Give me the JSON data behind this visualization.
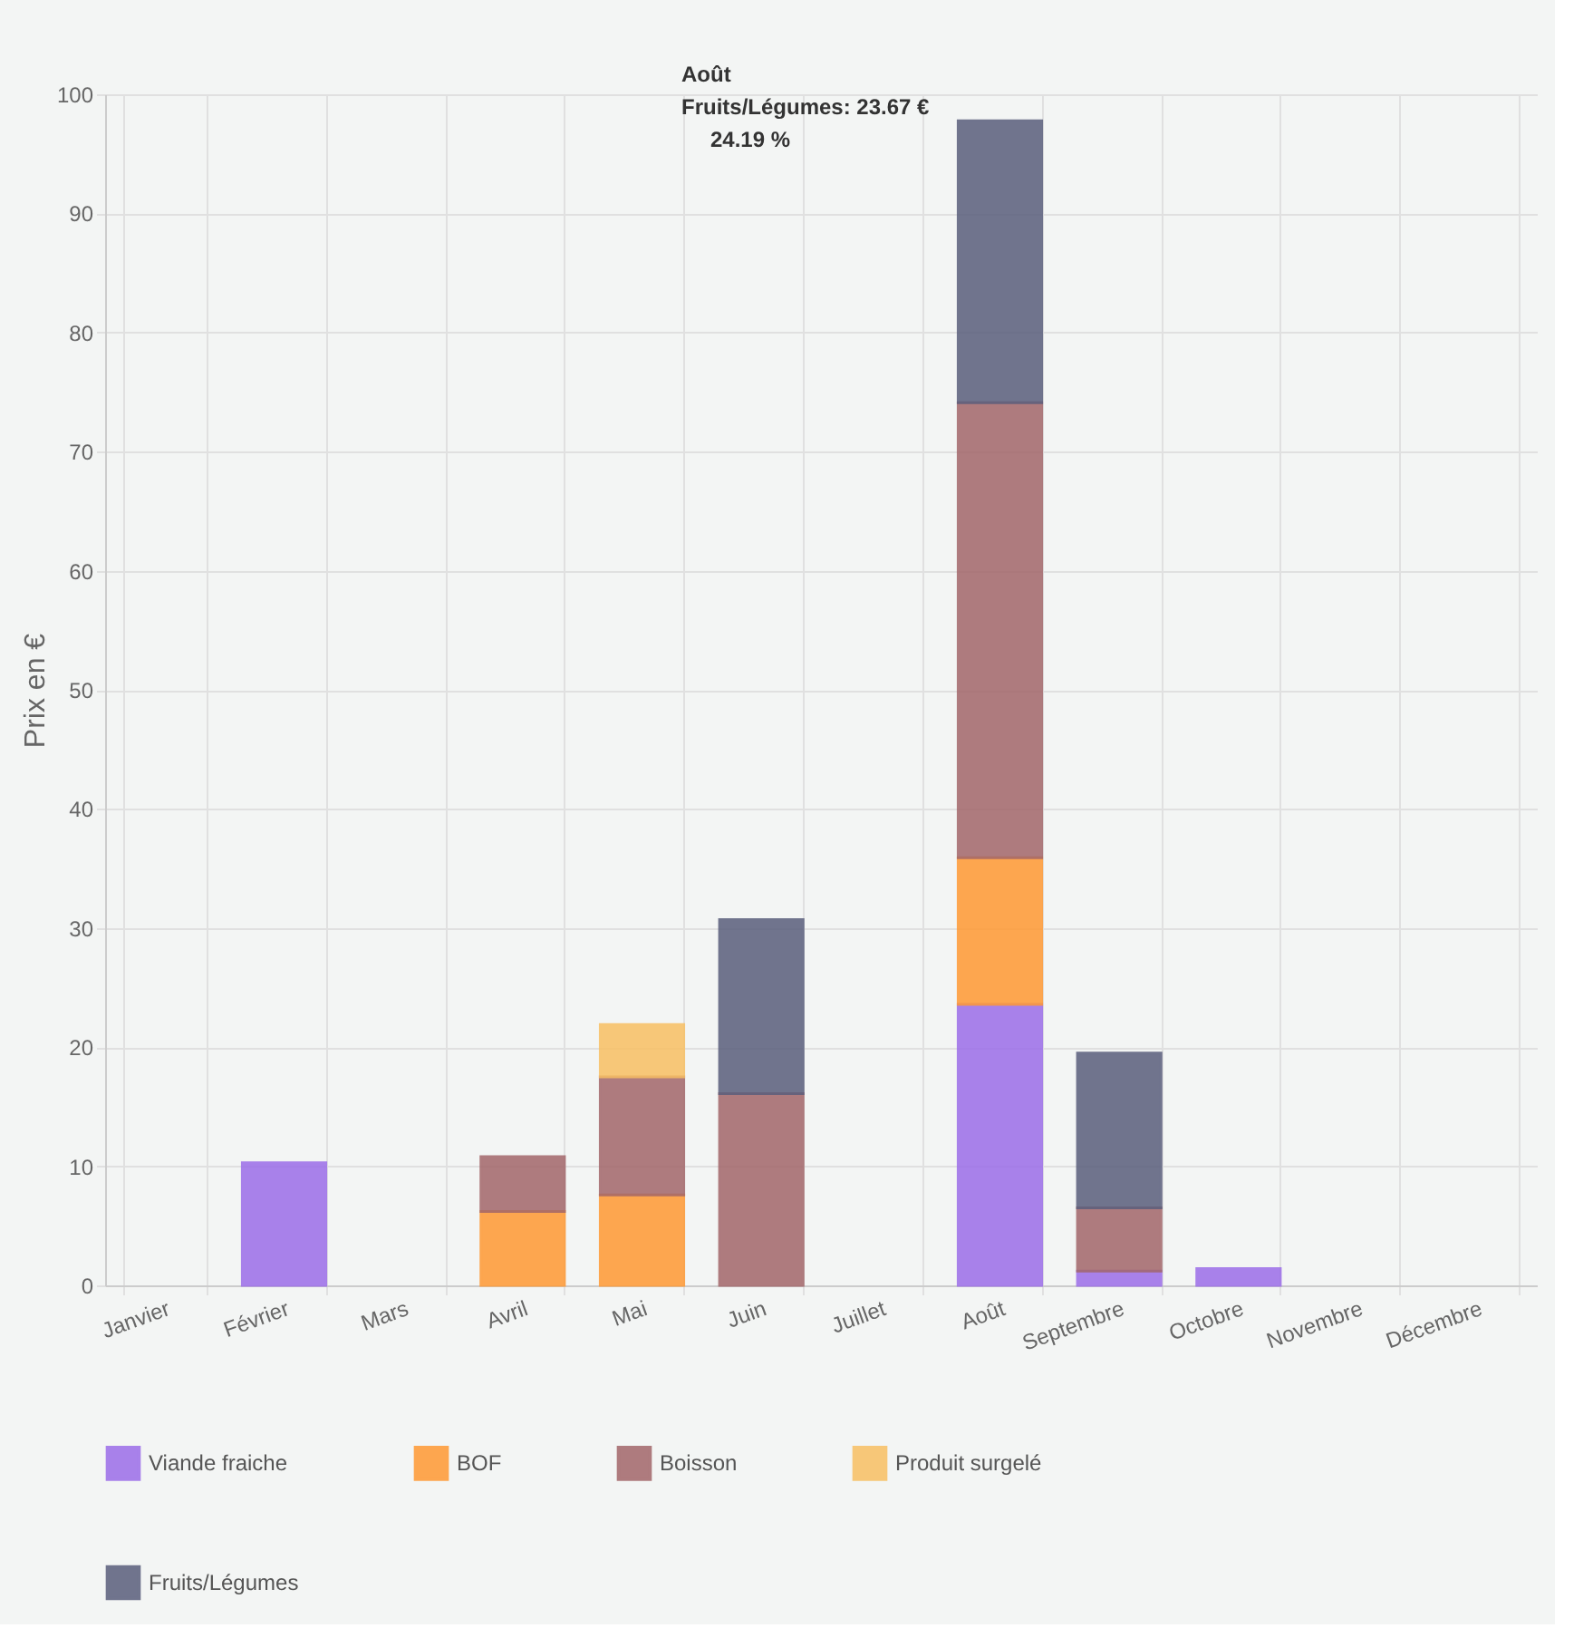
{
  "chart_data": {
    "type": "bar",
    "stacked": true,
    "ylabel": "Prix en €",
    "categories": [
      "Janvier",
      "Février",
      "Mars",
      "Avril",
      "Mai",
      "Juin",
      "Juillet",
      "Août",
      "Septembre",
      "Octobre",
      "Novembre",
      "Décembre"
    ],
    "series": [
      {
        "name": "Viande fraiche",
        "color": "#9b6de9",
        "values": [
          null,
          10.3,
          null,
          null,
          null,
          null,
          null,
          23.6,
          1.2,
          1.4,
          null,
          null
        ]
      },
      {
        "name": "BOF",
        "color": "#ff9933",
        "values": [
          null,
          null,
          null,
          6.2,
          7.6,
          null,
          null,
          12.3,
          null,
          null,
          null,
          null
        ]
      },
      {
        "name": "Boisson",
        "color": "#a2666a",
        "values": [
          null,
          null,
          null,
          4.6,
          9.9,
          16.1,
          null,
          38.2,
          5.3,
          null,
          null,
          null
        ]
      },
      {
        "name": "Produit surgelé",
        "color": "#f8c063",
        "values": [
          null,
          null,
          null,
          null,
          4.4,
          null,
          null,
          null,
          null,
          null,
          null,
          null
        ]
      },
      {
        "name": "Fruits/Légumes",
        "color": "#5a5e7c",
        "values": [
          null,
          null,
          null,
          null,
          null,
          14.6,
          null,
          23.67,
          13.0,
          null,
          null,
          null
        ]
      }
    ],
    "ylim": [
      0,
      100
    ],
    "yticks": [
      0,
      10,
      20,
      30,
      40,
      50,
      60,
      70,
      80,
      90,
      100
    ],
    "grid": true,
    "legend": "bottom",
    "annotations": [
      "Août",
      "Fruits/Légumes: 23.67 €",
      "24.19 %"
    ]
  }
}
